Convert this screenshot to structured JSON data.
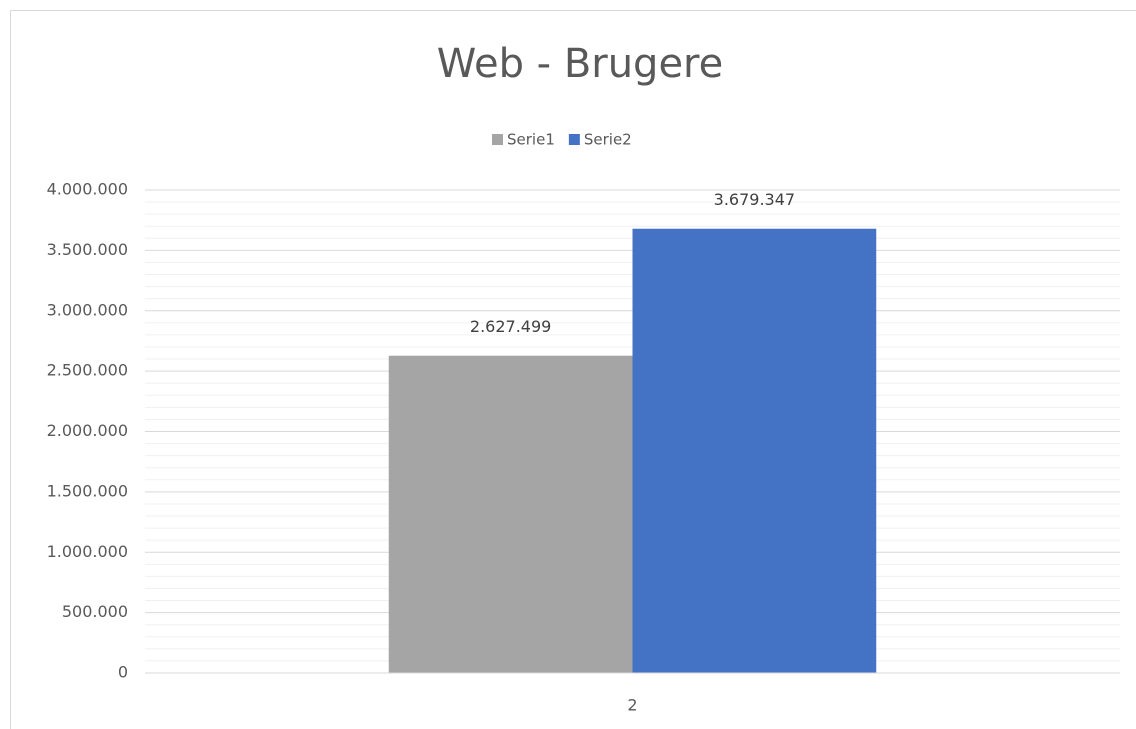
{
  "chart_data": {
    "type": "bar",
    "title": "Web - Brugere",
    "categories": [
      "2"
    ],
    "series": [
      {
        "name": "Serie1",
        "color": "#a5a5a5",
        "values": [
          2627499
        ],
        "value_labels": [
          "2.627.499"
        ]
      },
      {
        "name": "Serie2",
        "color": "#4472c4",
        "values": [
          3679347
        ],
        "value_labels": [
          "3.679.347"
        ]
      }
    ],
    "ylim": [
      0,
      4000000
    ],
    "yticks": [
      0,
      {
        "value": 500000,
        "label": "500.000"
      },
      {
        "value": 1000000,
        "label": "1.000.000"
      },
      {
        "value": 1500000,
        "label": "1.500.000"
      },
      {
        "value": 2000000,
        "label": "2.000.000"
      },
      {
        "value": 2500000,
        "label": "2.500.000"
      },
      {
        "value": 3000000,
        "label": "3.000.000"
      },
      {
        "value": 3500000,
        "label": "3.500.000"
      },
      {
        "value": 4000000,
        "label": "4.000.000"
      }
    ],
    "grid": true,
    "minor_grid": true,
    "legend": "top"
  }
}
